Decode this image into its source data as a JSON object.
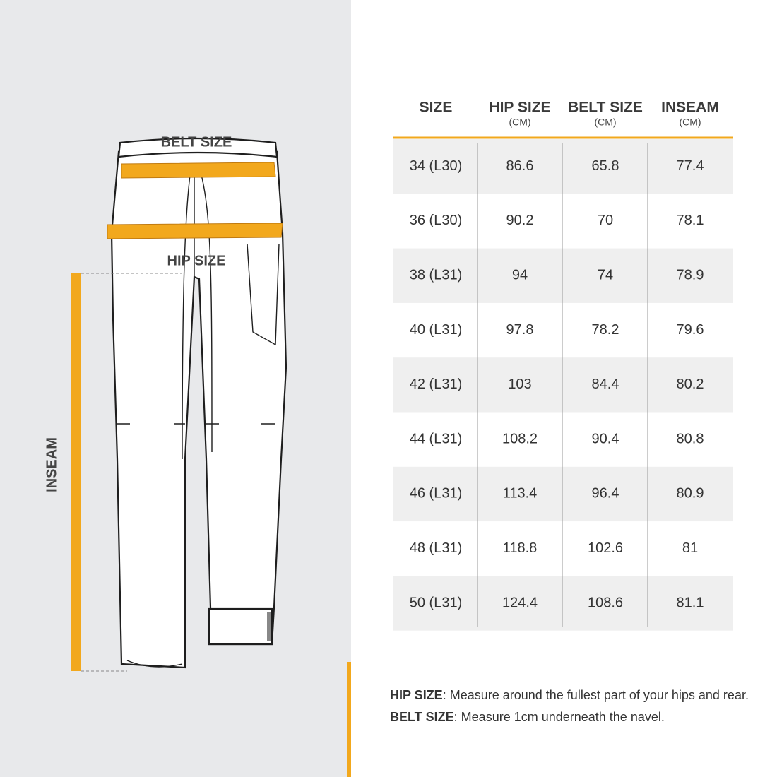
{
  "illustration": {
    "belt_label": "BELT SIZE",
    "hip_label": "HIP SIZE",
    "inseam_label": "INSEAM"
  },
  "table": {
    "headers": [
      {
        "title": "SIZE"
      },
      {
        "title": "HIP SIZE",
        "unit": "(CM)"
      },
      {
        "title": "BELT SIZE",
        "unit": "(CM)"
      },
      {
        "title": "INSEAM",
        "unit": "(CM)"
      }
    ],
    "rows": [
      [
        "34 (L30)",
        "86.6",
        "65.8",
        "77.4"
      ],
      [
        "36 (L30)",
        "90.2",
        "70",
        "78.1"
      ],
      [
        "38 (L31)",
        "94",
        "74",
        "78.9"
      ],
      [
        "40 (L31)",
        "97.8",
        "78.2",
        "79.6"
      ],
      [
        "42 (L31)",
        "103",
        "84.4",
        "80.2"
      ],
      [
        "44 (L31)",
        "108.2",
        "90.4",
        "80.8"
      ],
      [
        "46 (L31)",
        "113.4",
        "96.4",
        "80.9"
      ],
      [
        "48 (L31)",
        "118.8",
        "102.6",
        "81"
      ],
      [
        "50 (L31)",
        "124.4",
        "108.6",
        "81.1"
      ]
    ]
  },
  "notes": [
    {
      "term": "HIP SIZE",
      "text": ": Measure around the fullest part of your hips and rear."
    },
    {
      "term": "BELT SIZE",
      "text": ": Measure 1cm underneath the navel."
    }
  ]
}
